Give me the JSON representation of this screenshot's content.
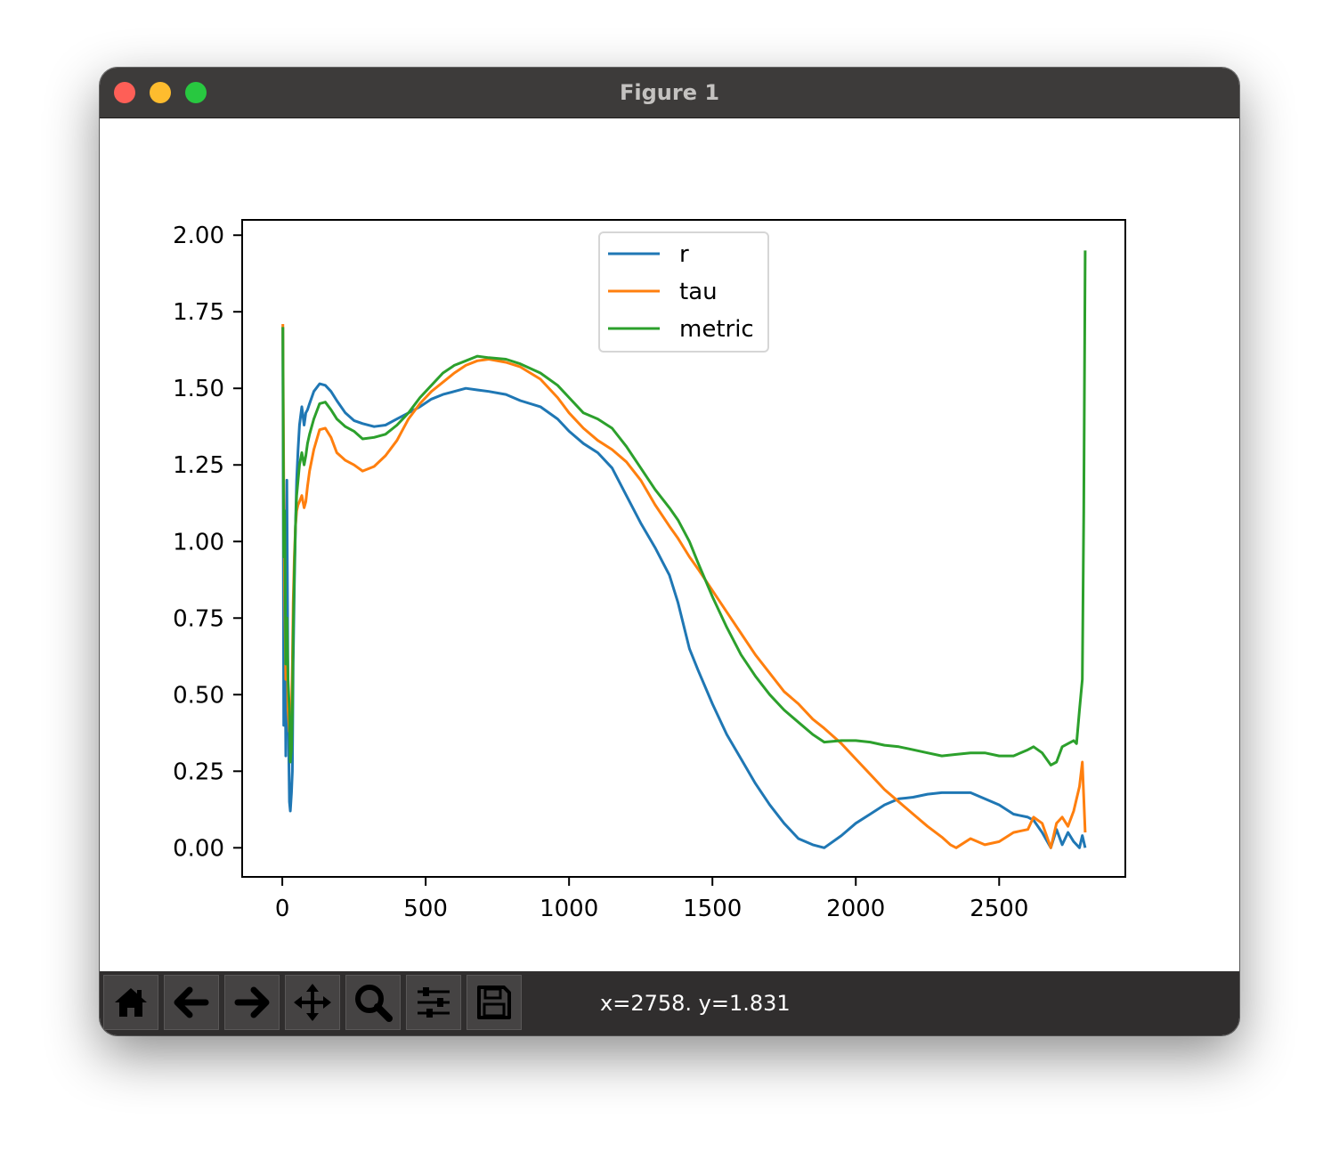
{
  "window": {
    "title": "Figure 1",
    "controls": [
      "close",
      "minimize",
      "maximize"
    ]
  },
  "toolbar": {
    "tools": [
      {
        "name": "home",
        "icon": "home-icon"
      },
      {
        "name": "back",
        "icon": "arrow-left-icon"
      },
      {
        "name": "forward",
        "icon": "arrow-right-icon"
      },
      {
        "name": "pan",
        "icon": "move-icon"
      },
      {
        "name": "zoom",
        "icon": "magnifier-icon"
      },
      {
        "name": "configure-subplots",
        "icon": "sliders-icon"
      },
      {
        "name": "save",
        "icon": "floppy-disk-icon"
      }
    ],
    "coords": "x=2758. y=1.831"
  },
  "colors": {
    "r": "#1f77b4",
    "tau": "#ff7f0e",
    "metric": "#2ca02c"
  },
  "chart_data": {
    "type": "line",
    "title": "",
    "xlabel": "",
    "ylabel": "",
    "xlim": [
      -140,
      2940
    ],
    "ylim": [
      -0.095,
      2.05
    ],
    "xticks": [
      0,
      500,
      1000,
      1500,
      2000,
      2500
    ],
    "xtick_labels": [
      "0",
      "500",
      "1000",
      "1500",
      "2000",
      "2500"
    ],
    "yticks": [
      0,
      0.25,
      0.5,
      0.75,
      1.0,
      1.25,
      1.5,
      1.75,
      2.0
    ],
    "ytick_labels": [
      "0.00",
      "0.25",
      "0.50",
      "0.75",
      "1.00",
      "1.25",
      "1.50",
      "1.75",
      "2.00"
    ],
    "grid": false,
    "legend": {
      "position": "upper-center",
      "entries": [
        "r",
        "tau",
        "metric"
      ]
    },
    "series": [
      {
        "name": "r",
        "x": [
          2,
          5,
          8,
          12,
          16,
          20,
          25,
          28,
          32,
          35,
          38,
          42,
          46,
          50,
          55,
          60,
          68,
          76,
          82,
          88,
          95,
          110,
          130,
          150,
          170,
          190,
          220,
          250,
          280,
          320,
          360,
          400,
          440,
          480,
          520,
          560,
          600,
          640,
          680,
          720,
          780,
          830,
          900,
          960,
          1000,
          1050,
          1100,
          1150,
          1200,
          1250,
          1300,
          1350,
          1380,
          1420,
          1450,
          1500,
          1550,
          1600,
          1650,
          1700,
          1750,
          1800,
          1850,
          1890,
          1950,
          2000,
          2050,
          2100,
          2150,
          2200,
          2250,
          2300,
          2350,
          2400,
          2450,
          2500,
          2550,
          2600,
          2620,
          2650,
          2680,
          2700,
          2720,
          2740,
          2760,
          2780,
          2790,
          2800
        ],
        "y": [
          1.7,
          0.4,
          0.95,
          0.3,
          1.2,
          0.5,
          0.15,
          0.12,
          0.18,
          0.25,
          0.6,
          0.85,
          1.05,
          1.2,
          1.3,
          1.38,
          1.44,
          1.38,
          1.42,
          1.43,
          1.45,
          1.49,
          1.515,
          1.51,
          1.49,
          1.46,
          1.42,
          1.395,
          1.385,
          1.375,
          1.38,
          1.4,
          1.42,
          1.44,
          1.465,
          1.48,
          1.49,
          1.5,
          1.495,
          1.49,
          1.48,
          1.46,
          1.44,
          1.4,
          1.36,
          1.32,
          1.29,
          1.24,
          1.15,
          1.06,
          0.98,
          0.89,
          0.8,
          0.65,
          0.58,
          0.47,
          0.37,
          0.29,
          0.21,
          0.14,
          0.08,
          0.03,
          0.01,
          0.0,
          0.04,
          0.08,
          0.11,
          0.14,
          0.16,
          0.165,
          0.175,
          0.18,
          0.18,
          0.18,
          0.16,
          0.14,
          0.11,
          0.1,
          0.09,
          0.05,
          0.0,
          0.06,
          0.01,
          0.05,
          0.02,
          0.0,
          0.04,
          0.0
        ]
      },
      {
        "name": "tau",
        "x": [
          2,
          5,
          8,
          12,
          16,
          20,
          25,
          28,
          32,
          35,
          38,
          42,
          46,
          50,
          55,
          60,
          68,
          76,
          82,
          88,
          95,
          110,
          130,
          150,
          170,
          190,
          220,
          250,
          280,
          320,
          360,
          400,
          440,
          480,
          520,
          560,
          600,
          640,
          680,
          720,
          780,
          830,
          900,
          960,
          1000,
          1050,
          1100,
          1150,
          1200,
          1250,
          1300,
          1350,
          1380,
          1420,
          1450,
          1500,
          1550,
          1600,
          1650,
          1700,
          1750,
          1800,
          1850,
          1890,
          1950,
          2000,
          2050,
          2100,
          2150,
          2200,
          2250,
          2300,
          2330,
          2350,
          2400,
          2450,
          2500,
          2550,
          2600,
          2620,
          2650,
          2680,
          2700,
          2720,
          2740,
          2760,
          2780,
          2790,
          2800
        ],
        "y": [
          1.71,
          1.2,
          0.85,
          0.55,
          0.7,
          0.45,
          0.38,
          0.4,
          0.45,
          0.6,
          0.8,
          0.95,
          1.05,
          1.1,
          1.12,
          1.13,
          1.15,
          1.11,
          1.13,
          1.18,
          1.23,
          1.3,
          1.365,
          1.37,
          1.34,
          1.29,
          1.265,
          1.25,
          1.23,
          1.245,
          1.28,
          1.33,
          1.4,
          1.45,
          1.49,
          1.52,
          1.55,
          1.575,
          1.59,
          1.595,
          1.585,
          1.57,
          1.53,
          1.47,
          1.42,
          1.37,
          1.33,
          1.3,
          1.26,
          1.2,
          1.12,
          1.05,
          1.01,
          0.95,
          0.91,
          0.84,
          0.77,
          0.7,
          0.63,
          0.57,
          0.51,
          0.47,
          0.42,
          0.39,
          0.34,
          0.29,
          0.24,
          0.19,
          0.15,
          0.11,
          0.07,
          0.035,
          0.01,
          0.0,
          0.03,
          0.01,
          0.02,
          0.05,
          0.06,
          0.1,
          0.08,
          0.0,
          0.08,
          0.1,
          0.07,
          0.12,
          0.2,
          0.28,
          0.05
        ]
      },
      {
        "name": "metric",
        "x": [
          2,
          5,
          8,
          12,
          16,
          20,
          25,
          28,
          32,
          35,
          38,
          42,
          46,
          50,
          55,
          60,
          68,
          76,
          82,
          88,
          95,
          110,
          130,
          150,
          170,
          190,
          220,
          250,
          280,
          320,
          360,
          400,
          440,
          480,
          520,
          560,
          600,
          640,
          680,
          720,
          780,
          830,
          900,
          960,
          1000,
          1050,
          1100,
          1150,
          1200,
          1250,
          1300,
          1350,
          1380,
          1420,
          1450,
          1500,
          1550,
          1600,
          1650,
          1700,
          1750,
          1800,
          1850,
          1890,
          1950,
          2000,
          2050,
          2100,
          2150,
          2200,
          2250,
          2300,
          2350,
          2400,
          2450,
          2500,
          2550,
          2600,
          2620,
          2650,
          2680,
          2700,
          2720,
          2740,
          2760,
          2770,
          2780,
          2790,
          2795,
          2800
        ],
        "y": [
          1.7,
          0.95,
          1.1,
          0.6,
          0.75,
          0.55,
          0.45,
          0.28,
          0.32,
          0.45,
          0.7,
          0.9,
          1.05,
          1.15,
          1.2,
          1.25,
          1.29,
          1.25,
          1.28,
          1.32,
          1.35,
          1.4,
          1.45,
          1.455,
          1.43,
          1.4,
          1.375,
          1.36,
          1.335,
          1.34,
          1.35,
          1.38,
          1.42,
          1.47,
          1.51,
          1.55,
          1.575,
          1.59,
          1.605,
          1.6,
          1.595,
          1.58,
          1.55,
          1.51,
          1.47,
          1.42,
          1.4,
          1.37,
          1.31,
          1.24,
          1.17,
          1.11,
          1.07,
          1.0,
          0.93,
          0.82,
          0.72,
          0.63,
          0.56,
          0.5,
          0.45,
          0.41,
          0.37,
          0.345,
          0.35,
          0.35,
          0.345,
          0.335,
          0.33,
          0.32,
          0.31,
          0.3,
          0.305,
          0.31,
          0.31,
          0.3,
          0.3,
          0.32,
          0.33,
          0.31,
          0.27,
          0.28,
          0.33,
          0.34,
          0.35,
          0.34,
          0.45,
          0.55,
          1.1,
          1.95
        ]
      }
    ]
  }
}
